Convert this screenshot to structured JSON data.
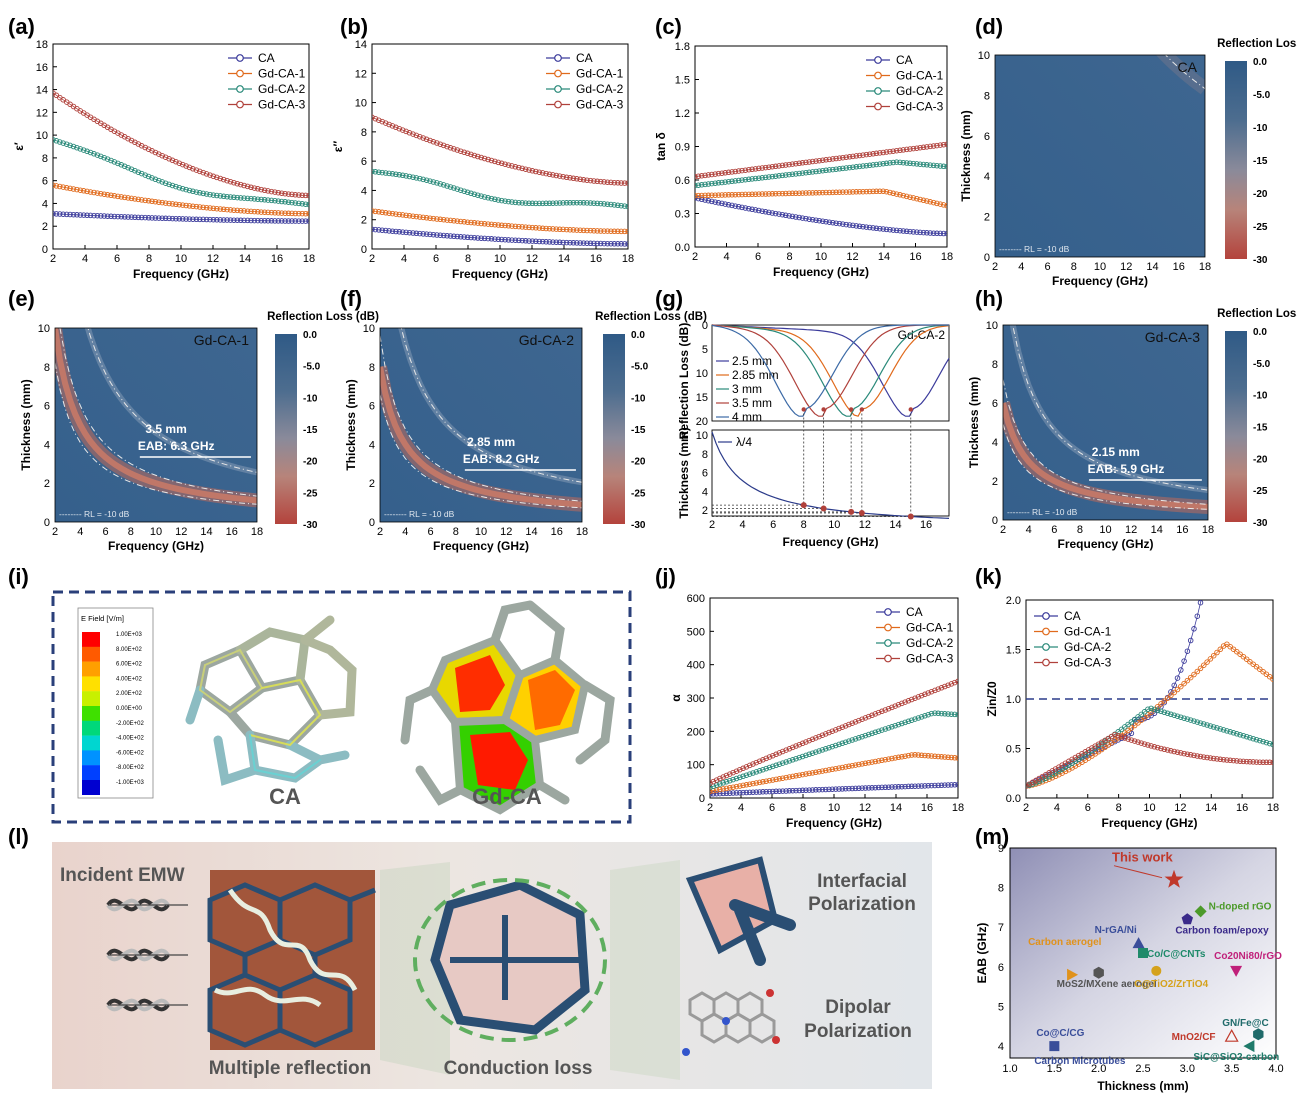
{
  "panel_labels": [
    "(a)",
    "(b)",
    "(c)",
    "(d)",
    "(e)",
    "(f)",
    "(g)",
    "(h)",
    "(i)",
    "(j)",
    "(k)",
    "(l)",
    "(m)"
  ],
  "series_names": [
    "CA",
    "Gd-CA-1",
    "Gd-CA-2",
    "Gd-CA-3"
  ],
  "series_colors": [
    "#3c3c9c",
    "#e06a1c",
    "#2a8a7a",
    "#b0413b"
  ],
  "freq_label": "Frequency (GHz)",
  "freq_ticks": [
    "2",
    "4",
    "6",
    "8",
    "10",
    "12",
    "14",
    "16",
    "18"
  ],
  "colorbar": {
    "title": "Reflection Loss (dB)",
    "ticks": [
      "0.0",
      "-5.0",
      "-10",
      "-15",
      "-20",
      "-25",
      "-30"
    ]
  },
  "thickness_label": "Thickness (mm)",
  "rl_note": "RL = -10 dB",
  "maps": [
    {
      "name": "CA",
      "annotation_thickness": "",
      "annotation_eab": ""
    },
    {
      "name": "Gd-CA-1",
      "annotation_thickness": "3.5 mm",
      "annotation_eab": "EAB: 6.3 GHz"
    },
    {
      "name": "Gd-CA-2",
      "annotation_thickness": "2.85 mm",
      "annotation_eab": "EAB: 8.2 GHz"
    },
    {
      "name": "Gd-CA-3",
      "annotation_thickness": "2.15 mm",
      "annotation_eab": "EAB: 5.9 GHz"
    }
  ],
  "panel_g": {
    "name": "Gd-CA-2",
    "ylabel_top": "Reflection Loss (dB)",
    "ylabel_bottom": "Thickness (mm)",
    "legend": [
      "2.5 mm",
      "2.85 mm",
      "3 mm",
      "3.5 mm",
      "4 mm"
    ],
    "quarter_label": "λ/4"
  },
  "panel_i": {
    "legend_title": "E Field [V/m]",
    "legend_values": [
      "1.00E+03",
      "8.00E+02",
      "6.00E+02",
      "4.00E+02",
      "2.00E+02",
      "0.00E+00",
      "-2.00E+02",
      "-4.00E+02",
      "-6.00E+02",
      "-8.00E+02",
      "-1.00E+03"
    ],
    "label_left": "CA",
    "label_right": "Gd-CA"
  },
  "panel_l": {
    "incident": "Incident EMW",
    "multiple": "Multiple reflection",
    "conduction": "Conduction loss",
    "interfacial_1": "Interfacial",
    "interfacial_2": "Polarization",
    "dipolar_1": "Dipolar",
    "dipolar_2": "Polarization"
  },
  "chart_data": [
    {
      "panel": "a",
      "type": "scatter",
      "ylabel": "ε′",
      "xlabel": "Frequency (GHz)",
      "ylim": [
        0,
        18
      ],
      "yticks": [
        "0",
        "2",
        "4",
        "6",
        "8",
        "10",
        "12",
        "14",
        "16",
        "18"
      ],
      "series": [
        {
          "name": "CA",
          "start": 3.1,
          "end": 2.45
        },
        {
          "name": "Gd-CA-1",
          "start": 5.6,
          "end": 3.1
        },
        {
          "name": "Gd-CA-2",
          "start": 9.6,
          "end": 3.8
        },
        {
          "name": "Gd-CA-3",
          "start": 13.7,
          "end": 4.7
        }
      ]
    },
    {
      "panel": "b",
      "type": "scatter",
      "ylabel": "ε″",
      "xlabel": "Frequency (GHz)",
      "ylim": [
        0,
        14
      ],
      "yticks": [
        "0",
        "2",
        "4",
        "6",
        "8",
        "10",
        "12",
        "14"
      ],
      "series": [
        {
          "name": "CA",
          "start": 1.35,
          "end": 0.35
        },
        {
          "name": "Gd-CA-1",
          "start": 2.6,
          "end": 1.2
        },
        {
          "name": "Gd-CA-2",
          "start": 5.3,
          "end": 2.8
        },
        {
          "name": "Gd-CA-3",
          "start": 9.0,
          "end": 4.5
        }
      ]
    },
    {
      "panel": "c",
      "type": "scatter",
      "ylabel": "tan δ",
      "xlabel": "Frequency (GHz)",
      "ylim": [
        0,
        1.8
      ],
      "yticks": [
        "0.0",
        "0.3",
        "0.6",
        "0.9",
        "1.2",
        "1.5",
        "1.8"
      ],
      "series": [
        {
          "name": "CA",
          "start": 0.44,
          "end": 0.12
        },
        {
          "name": "Gd-CA-1",
          "start": 0.46,
          "end": 0.37
        },
        {
          "name": "Gd-CA-2",
          "start": 0.55,
          "end": 0.72
        },
        {
          "name": "Gd-CA-3",
          "start": 0.63,
          "end": 0.92
        }
      ]
    },
    {
      "panel": "j",
      "type": "scatter",
      "ylabel": "α",
      "xlabel": "Frequency (GHz)",
      "ylim": [
        0,
        600
      ],
      "yticks": [
        "0",
        "100",
        "200",
        "300",
        "400",
        "500",
        "600"
      ],
      "series": [
        {
          "name": "CA",
          "start": 12,
          "end": 40
        },
        {
          "name": "Gd-CA-1",
          "start": 20,
          "end": 120
        },
        {
          "name": "Gd-CA-2",
          "start": 32,
          "end": 250
        },
        {
          "name": "Gd-CA-3",
          "start": 44,
          "end": 350
        }
      ]
    },
    {
      "panel": "k",
      "type": "scatter",
      "ylabel": "Zin/Z0",
      "xlabel": "Frequency (GHz)",
      "ylim": [
        0,
        2.0
      ],
      "yticks": [
        "0.0",
        "0.5",
        "1.0",
        "1.5",
        "2.0"
      ],
      "series": [
        {
          "name": "CA",
          "start": 0.12,
          "end": 2.0
        },
        {
          "name": "Gd-CA-1",
          "start": 0.12,
          "end": 1.2
        },
        {
          "name": "Gd-CA-2",
          "start": 0.12,
          "end": 0.54
        },
        {
          "name": "Gd-CA-3",
          "start": 0.12,
          "end": 0.36
        }
      ]
    },
    {
      "panel": "m",
      "type": "scatter",
      "xlabel": "Thickness (mm)",
      "ylabel": "EAB (GHz)",
      "xlim": [
        1.0,
        4.0
      ],
      "ylim": [
        3.7,
        9
      ],
      "xticks": [
        "1.0",
        "1.5",
        "2.0",
        "2.5",
        "3.0",
        "3.5",
        "4.0"
      ],
      "yticks": [
        "4",
        "5",
        "6",
        "7",
        "8",
        "9"
      ],
      "points": [
        {
          "label": "This work",
          "x": 2.85,
          "y": 8.2
        },
        {
          "label": "N-doped rGO",
          "x": 3.15,
          "y": 7.4
        },
        {
          "label": "Carbon foam/epoxy",
          "x": 3.0,
          "y": 7.2
        },
        {
          "label": "N-rGA/Ni",
          "x": 2.45,
          "y": 6.6
        },
        {
          "label": "Co/C@CNTs",
          "x": 2.5,
          "y": 6.35
        },
        {
          "label": "Co20Ni80/rGO",
          "x": 3.55,
          "y": 5.9
        },
        {
          "label": "Carbon aerogel",
          "x": 1.7,
          "y": 5.8
        },
        {
          "label": "MoS2/MXene aerogel",
          "x": 2.0,
          "y": 5.85
        },
        {
          "label": "C@TiO2/ZrTiO4",
          "x": 2.65,
          "y": 5.9
        },
        {
          "label": "MnO2/CF",
          "x": 3.5,
          "y": 4.25
        },
        {
          "label": "GN/Fe@C",
          "x": 3.8,
          "y": 4.3
        },
        {
          "label": "SiC@SiO2-carbon",
          "x": 3.7,
          "y": 4.0
        },
        {
          "label": "Co@C/CG",
          "x": 1.5,
          "y": 4.0
        },
        {
          "label": "Carbon Microtubes",
          "x": 1.5,
          "y": 3.9
        }
      ]
    }
  ]
}
